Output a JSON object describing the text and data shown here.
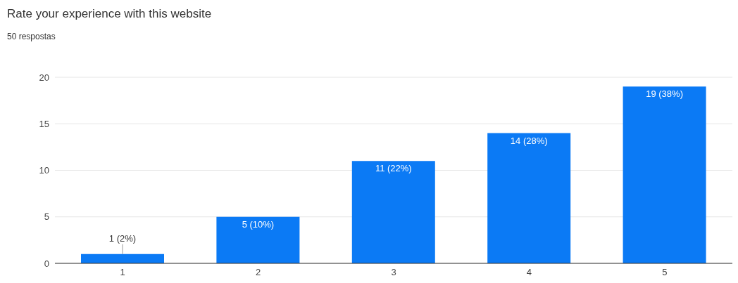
{
  "chart_data": {
    "type": "bar",
    "title": "Rate your experience with this website",
    "subtitle": "50 respostas",
    "categories": [
      "1",
      "2",
      "3",
      "4",
      "5"
    ],
    "values": [
      1,
      5,
      11,
      14,
      19
    ],
    "value_labels": [
      "1 (2%)",
      "5 (10%)",
      "11 (22%)",
      "14 (28%)",
      "19 (38%)"
    ],
    "color": "#0b7af5",
    "ylim": [
      0,
      20
    ],
    "yticks": [
      0,
      5,
      10,
      15,
      20
    ],
    "grid": "y",
    "legend": false
  }
}
